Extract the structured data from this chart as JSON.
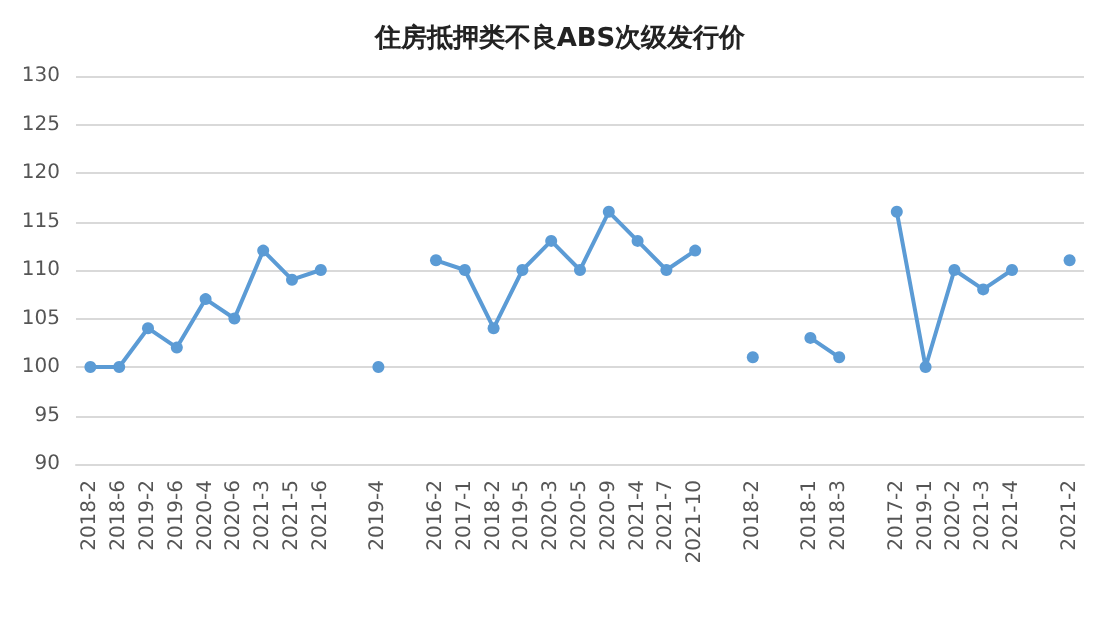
{
  "chart_data": {
    "type": "line",
    "title": "住房抵押类不良ABS次级发行价",
    "categories": [
      "2018-2",
      "2018-6",
      "2019-2",
      "2019-6",
      "2020-4",
      "2020-6",
      "2021-3",
      "2021-5",
      "2021-6",
      null,
      "2019-4",
      null,
      "2016-2",
      "2017-1",
      "2018-2",
      "2019-5",
      "2020-3",
      "2020-5",
      "2020-9",
      "2021-4",
      "2021-7",
      "2021-10",
      null,
      "2018-2",
      null,
      "2018-1",
      "2018-3",
      null,
      "2017-2",
      "2019-1",
      "2020-2",
      "2021-3",
      "2021-4",
      null,
      "2021-2"
    ],
    "series": [
      {
        "color": "#5b9bd5",
        "values": [
          100,
          100,
          104,
          102,
          107,
          105,
          112,
          109,
          110,
          null,
          100,
          null,
          111,
          110,
          104,
          110,
          113,
          110,
          116,
          113,
          110,
          112,
          null,
          101,
          null,
          103,
          101,
          null,
          116,
          100,
          110,
          108,
          110,
          null,
          111
        ]
      }
    ],
    "ylim": [
      90,
      130
    ],
    "yticks": [
      90,
      95,
      100,
      105,
      110,
      115,
      120,
      125,
      130
    ],
    "grid": "y",
    "marker": "circle",
    "line_style": "solid"
  }
}
